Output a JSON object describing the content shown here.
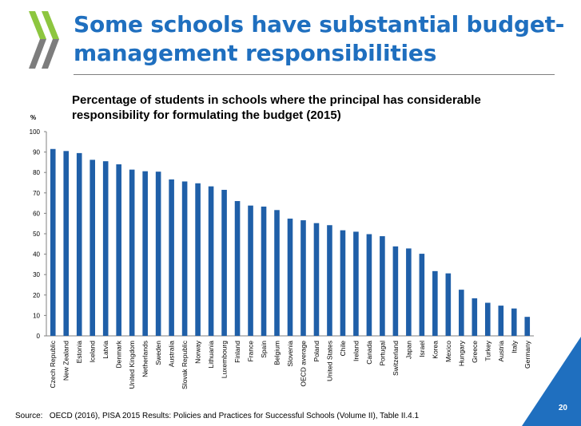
{
  "slide": {
    "title": "Some schools have substantial budget-management responsibilities",
    "page_number": "20",
    "accent_color": "#1f6fbf",
    "logo_colors": [
      "#8dc63f",
      "#7d7d7d"
    ],
    "logo_icon": "oecd-logo-icon"
  },
  "chart_data": {
    "type": "bar",
    "title": "Percentage of students in schools where the principal has considerable responsibility for formulating the budget (2015)",
    "ylabel": "%",
    "xlabel": "",
    "ylim": [
      0,
      100
    ],
    "yticks": [
      0,
      10,
      20,
      30,
      40,
      50,
      60,
      70,
      80,
      90,
      100
    ],
    "bar_color": "#1f5fa8",
    "grid": false,
    "categories": [
      "Czech Republic",
      "New Zealand",
      "Estonia",
      "Iceland",
      "Latvia",
      "Denmark",
      "United Kingdom",
      "Netherlands",
      "Sweden",
      "Australia",
      "Slovak Republic",
      "Norway",
      "Lithuania",
      "Luxembourg",
      "Finland",
      "France",
      "Spain",
      "Belgium",
      "Slovenia",
      "OECD average",
      "Poland",
      "United States",
      "Chile",
      "Ireland",
      "Canada",
      "Portugal",
      "Switzerland",
      "Japan",
      "Israel",
      "Korea",
      "Mexico",
      "Hungary",
      "Greece",
      "Turkey",
      "Austria",
      "Italy",
      "Germany"
    ],
    "values": [
      91.5,
      90.5,
      89.5,
      86.2,
      85.5,
      84,
      81.4,
      80.6,
      80.4,
      76.6,
      75.6,
      74.7,
      73.2,
      71.5,
      66,
      63.8,
      63.3,
      61.6,
      57.4,
      56.6,
      55.2,
      54.2,
      51.7,
      51,
      49.8,
      48.8,
      43.8,
      42.8,
      40.2,
      31.7,
      30.6,
      22.6,
      18.4,
      16.2,
      14.8,
      13.4,
      9.3
    ]
  },
  "source": {
    "label": "Source:",
    "text": "OECD (2016), PISA 2015 Results: Policies and Practices for Successful Schools (Volume II), Table II.4.1"
  }
}
